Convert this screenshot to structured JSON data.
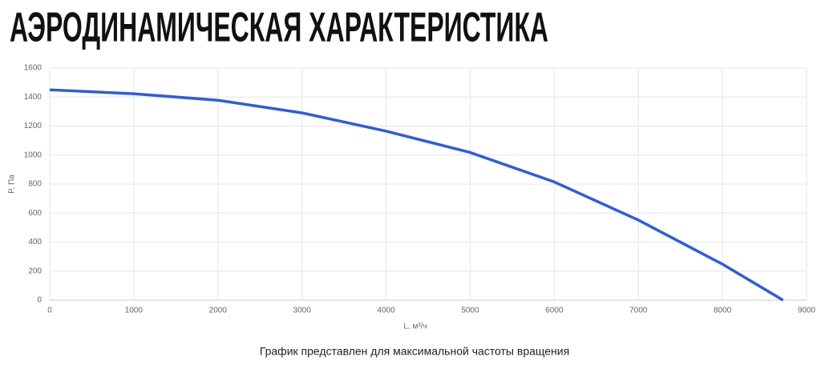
{
  "chart_data": {
    "type": "line",
    "title": "АЭРОДИНАМИЧЕСКАЯ ХАРАКТЕРИСТИКА",
    "x_label": "L, м³/ч",
    "y_label": "P, Па",
    "annotation": "График представлен для максимальной частоты вращения",
    "x": [
      0,
      1000,
      2000,
      3000,
      4000,
      5000,
      6000,
      7000,
      8000,
      8720
    ],
    "series": [
      {
        "color": "#2b5ce6",
        "values": [
          1450,
          1423,
          1378,
          1291,
          1165,
          1018,
          815,
          552,
          248,
          0
        ]
      }
    ],
    "xlim": [
      0,
      9000
    ],
    "xticks": [
      0,
      1000,
      2000,
      3000,
      4000,
      5000,
      6000,
      7000,
      8000,
      9000
    ],
    "ylim": [
      0,
      1600
    ],
    "yticks": [
      0,
      200,
      400,
      600,
      800,
      1000,
      1200,
      1400,
      1600
    ],
    "grid": true
  }
}
